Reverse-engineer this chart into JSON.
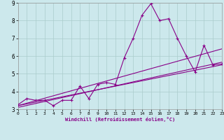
{
  "title": "",
  "xlabel": "Windchill (Refroidissement éolien,°C)",
  "xlim": [
    0,
    23
  ],
  "ylim": [
    3,
    9
  ],
  "yticks": [
    3,
    4,
    5,
    6,
    7,
    8,
    9
  ],
  "xticks": [
    0,
    1,
    2,
    3,
    4,
    5,
    6,
    7,
    8,
    9,
    10,
    11,
    12,
    13,
    14,
    15,
    16,
    17,
    18,
    19,
    20,
    21,
    22,
    23
  ],
  "bg_color": "#cce8ec",
  "line_color": "#880088",
  "grid_color": "#aacccc",
  "main_x": [
    0,
    1,
    2,
    3,
    4,
    5,
    6,
    7,
    8,
    9,
    10,
    11,
    12,
    13,
    14,
    15,
    16,
    17,
    18,
    19,
    20,
    21,
    22,
    23
  ],
  "main_y": [
    3.25,
    3.6,
    3.5,
    3.5,
    3.2,
    3.5,
    3.5,
    4.3,
    3.6,
    4.4,
    4.5,
    4.4,
    5.9,
    7.0,
    8.3,
    8.95,
    8.0,
    8.1,
    7.0,
    6.0,
    5.1,
    6.6,
    5.5,
    5.55
  ],
  "line1_x": [
    0,
    23
  ],
  "line1_y": [
    3.2,
    5.5
  ],
  "line2_x": [
    0,
    23
  ],
  "line2_y": [
    3.1,
    5.65
  ],
  "line3_x": [
    0,
    23
  ],
  "line3_y": [
    3.2,
    6.4
  ]
}
